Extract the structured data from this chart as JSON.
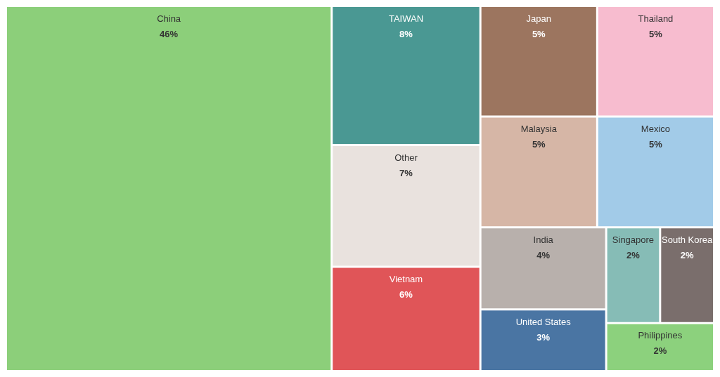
{
  "chart_data": {
    "type": "other",
    "categories": [
      "China",
      "TAIWAN",
      "Vietnam",
      "Mexico",
      "Malaysia",
      "Thailand",
      "Japan",
      "India",
      "United States",
      "Philippines",
      "South Korea",
      "Singapore",
      "Other"
    ],
    "values": [
      46,
      8,
      6,
      5,
      5,
      5,
      5,
      4,
      3,
      2,
      2,
      2,
      7
    ],
    "value_labels": [
      "46%",
      "8%",
      "6%",
      "5%",
      "5%",
      "5%",
      "5%",
      "4%",
      "3%",
      "2%",
      "2%",
      "2%",
      "7%"
    ],
    "colors": [
      "#8ccf7a",
      "#4a9893",
      "#e05558",
      "#a2cbe8",
      "#d6b6a6",
      "#f7bccf",
      "#9c755f",
      "#b8b0ac",
      "#4a75a3",
      "#8cd17d",
      "#7a6e6c",
      "#86bcb6",
      "#e9e2de"
    ]
  }
}
